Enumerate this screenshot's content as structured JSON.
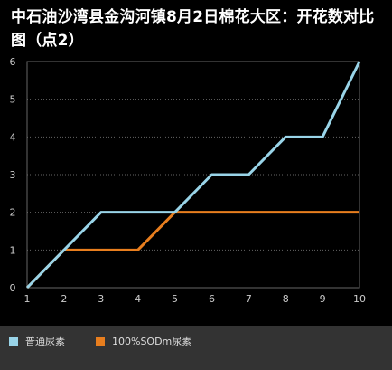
{
  "chart_title": "中石油沙湾县金沟河镇8月2日棉花大区：开花数对比图（点2）",
  "chart_data": {
    "type": "line",
    "title": "中石油沙湾县金沟河镇8月2日棉花大区：开花数对比图（点2）",
    "xlabel": "",
    "ylabel": "",
    "x": [
      1,
      2,
      3,
      4,
      5,
      6,
      7,
      8,
      9,
      10
    ],
    "x_ticks": [
      "1",
      "2",
      "3",
      "4",
      "5",
      "6",
      "7",
      "8",
      "9",
      "10"
    ],
    "y_ticks": [
      "0",
      "1",
      "2",
      "3",
      "4",
      "5",
      "6"
    ],
    "ylim": [
      0,
      6
    ],
    "xlim": [
      1,
      10
    ],
    "grid": "horizontal dotted",
    "legend_position": "bottom",
    "series": [
      {
        "name": "普通尿素",
        "color": "#99d4e8",
        "values": [
          0,
          1,
          2,
          2,
          2,
          3,
          3,
          4,
          4,
          6
        ]
      },
      {
        "name": "100%SODm尿素",
        "color": "#e87e1e",
        "values": [
          0,
          1,
          1,
          1,
          2,
          2,
          2,
          2,
          2,
          2
        ]
      }
    ]
  },
  "colors": {
    "background": "#000000",
    "plot_border": "#666666",
    "grid": "#666666",
    "axis_text": "#cccccc",
    "legend_bg": "#333333"
  }
}
